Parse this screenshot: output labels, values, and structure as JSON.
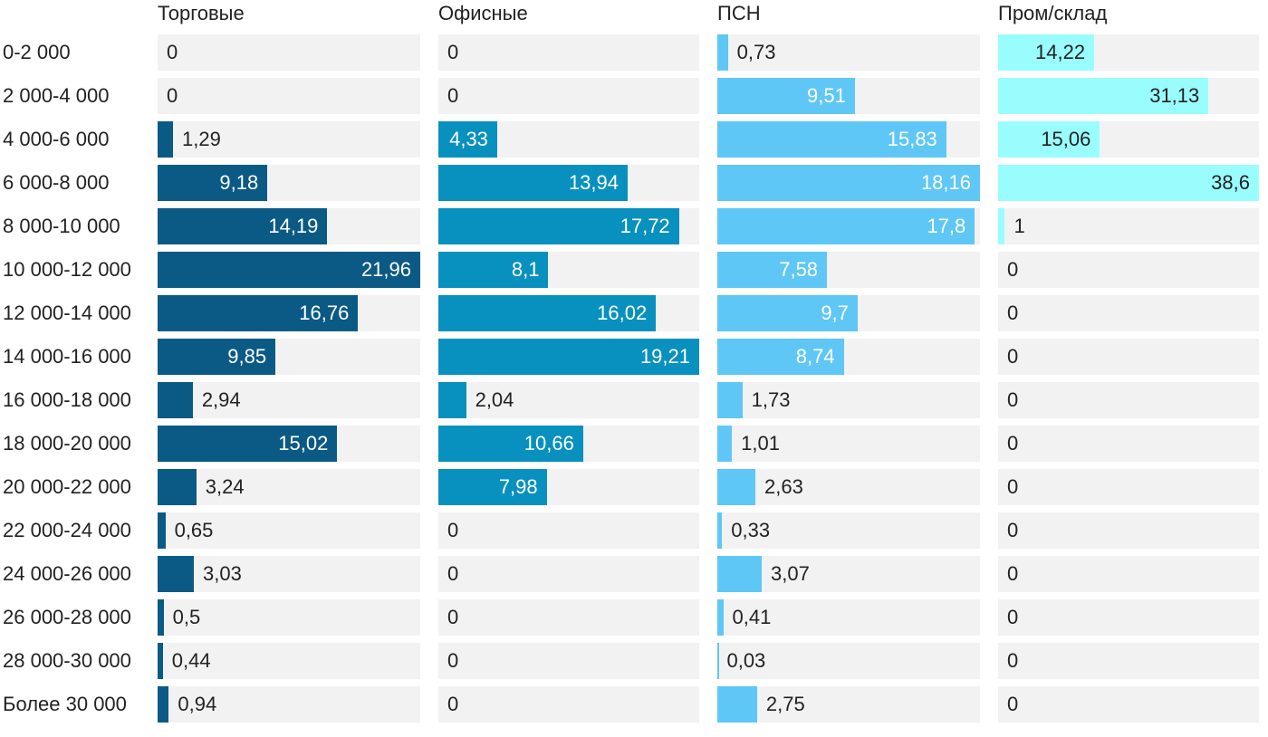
{
  "chart_data": {
    "type": "bar",
    "orientation": "horizontal",
    "layout": "small-multiples",
    "categories": [
      "0-2 000",
      "2 000-4 000",
      "4 000-6 000",
      "6 000-8 000",
      "8 000-10 000",
      "10 000-12 000",
      "12 000-14 000",
      "14 000-16 000",
      "16 000-18 000",
      "18 000-20 000",
      "20 000-22 000",
      "22 000-24 000",
      "24 000-26 000",
      "26 000-28 000",
      "28 000-30 000",
      "Более 30 000"
    ],
    "series": [
      {
        "name": "Торговые",
        "color": "#0b5a85",
        "max": 21.96,
        "values": [
          0,
          0,
          1.29,
          9.18,
          14.19,
          21.96,
          16.76,
          9.85,
          2.94,
          15.02,
          3.24,
          0.65,
          3.03,
          0.5,
          0.44,
          0.94
        ],
        "labels": [
          "0",
          "0",
          "1,29",
          "9,18",
          "14,19",
          "21,96",
          "16,76",
          "9,85",
          "2,94",
          "15,02",
          "3,24",
          "0,65",
          "3,03",
          "0,5",
          "0,44",
          "0,94"
        ]
      },
      {
        "name": "Офисные",
        "color": "#0891be",
        "max": 19.21,
        "values": [
          0,
          0,
          4.33,
          13.94,
          17.72,
          8.1,
          16.02,
          19.21,
          2.04,
          10.66,
          7.98,
          0,
          0,
          0,
          0,
          0
        ],
        "labels": [
          "0",
          "0",
          "4,33",
          "13,94",
          "17,72",
          "8,1",
          "16,02",
          "19,21",
          "2,04",
          "10,66",
          "7,98",
          "0",
          "0",
          "0",
          "0",
          "0"
        ]
      },
      {
        "name": "ПСН",
        "color": "#5fc7f5",
        "max": 18.16,
        "values": [
          0.73,
          9.51,
          15.83,
          18.16,
          17.8,
          7.58,
          9.7,
          8.74,
          1.73,
          1.01,
          2.63,
          0.33,
          3.07,
          0.41,
          0.03,
          2.75
        ],
        "labels": [
          "0,73",
          "9,51",
          "15,83",
          "18,16",
          "17,8",
          "7,58",
          "9,7",
          "8,74",
          "1,73",
          "1,01",
          "2,63",
          "0,33",
          "3,07",
          "0,41",
          "0,03",
          "2,75"
        ]
      },
      {
        "name": "Пром/склад",
        "color": "#9afdfd",
        "max": 38.6,
        "values": [
          14.22,
          31.13,
          15.06,
          38.6,
          1,
          0,
          0,
          0,
          0,
          0,
          0,
          0,
          0,
          0,
          0,
          0
        ],
        "labels": [
          "14,22",
          "31,13",
          "15,06",
          "38,6",
          "1",
          "0",
          "0",
          "0",
          "0",
          "0",
          "0",
          "0",
          "0",
          "0",
          "0",
          "0"
        ]
      }
    ],
    "title": "",
    "xlabel": "",
    "ylabel": "",
    "grid": false,
    "legend": "none"
  }
}
